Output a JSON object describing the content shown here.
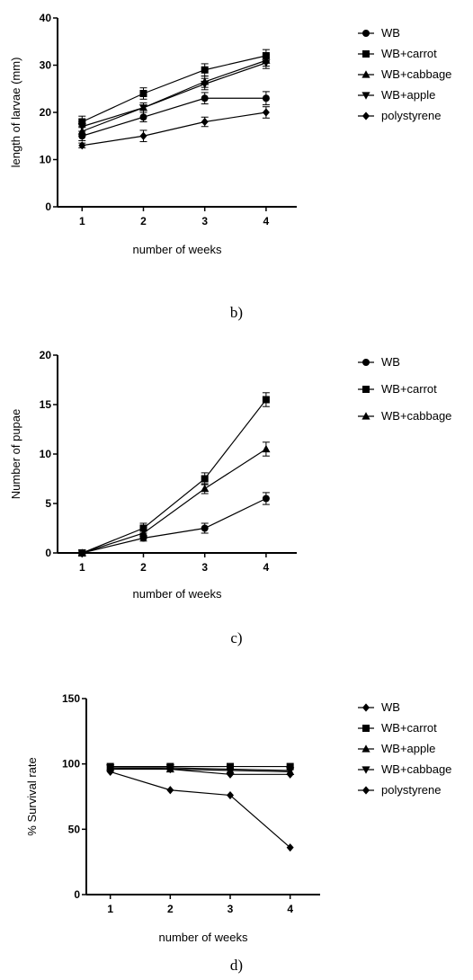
{
  "captions": {
    "b": "b)",
    "c": "c)",
    "d": "d)"
  },
  "chart_data": [
    {
      "type": "line",
      "xlabel": "number of weeks",
      "ylabel": "length of larvae (mm)",
      "x": [
        1,
        2,
        3,
        4
      ],
      "xlim": [
        0.6,
        4.5
      ],
      "ylim": [
        0,
        40
      ],
      "yticks": [
        0,
        10,
        20,
        30,
        40
      ],
      "series": [
        {
          "name": "WB",
          "marker": "circle",
          "values": [
            15,
            19,
            23,
            23
          ],
          "err": [
            1,
            1,
            1.2,
            1.4
          ]
        },
        {
          "name": "WB+carrot",
          "marker": "square",
          "values": [
            18,
            24,
            29,
            32
          ],
          "err": [
            1.2,
            1.2,
            1.3,
            1.3
          ]
        },
        {
          "name": "WB+cabbage",
          "marker": "triangle-up",
          "values": [
            16,
            21,
            26.5,
            31
          ],
          "err": [
            1,
            1,
            1.2,
            1.2
          ]
        },
        {
          "name": "WB+apple",
          "marker": "triangle-down",
          "values": [
            17,
            21,
            26,
            30.5
          ],
          "err": [
            1,
            1,
            1.2,
            1.2
          ]
        },
        {
          "name": "polystyrene",
          "marker": "diamond",
          "values": [
            13,
            15,
            18,
            20
          ],
          "err": [
            0.5,
            1.2,
            1,
            1.2
          ]
        }
      ]
    },
    {
      "type": "line",
      "xlabel": "number of weeks",
      "ylabel": "Number of pupae",
      "x": [
        1,
        2,
        3,
        4
      ],
      "xlim": [
        0.6,
        4.5
      ],
      "ylim": [
        0,
        20
      ],
      "yticks": [
        0,
        5,
        10,
        15,
        20
      ],
      "series": [
        {
          "name": "WB",
          "marker": "circle",
          "values": [
            0,
            1.5,
            2.5,
            5.5
          ],
          "err": [
            0.3,
            0.3,
            0.5,
            0.6
          ]
        },
        {
          "name": "WB+carrot",
          "marker": "square",
          "values": [
            0,
            2.5,
            7.5,
            15.5
          ],
          "err": [
            0.3,
            0.5,
            0.6,
            0.7
          ]
        },
        {
          "name": "WB+cabbage",
          "marker": "triangle-up",
          "values": [
            0,
            2,
            6.5,
            10.5
          ],
          "err": [
            0.3,
            0.4,
            0.5,
            0.7
          ]
        }
      ]
    },
    {
      "type": "line",
      "xlabel": "number of weeks",
      "ylabel": "% Survival rate",
      "x": [
        1,
        2,
        3,
        4
      ],
      "xlim": [
        0.6,
        4.5
      ],
      "ylim": [
        0,
        150
      ],
      "yticks": [
        0,
        50,
        100,
        150
      ],
      "series": [
        {
          "name": "WB",
          "marker": "diamond",
          "values": [
            96,
            96,
            92,
            92
          ],
          "err": [
            0,
            0,
            0,
            0
          ]
        },
        {
          "name": "WB+carrot",
          "marker": "square",
          "values": [
            98,
            98,
            98,
            98
          ],
          "err": [
            0,
            0,
            0,
            0
          ]
        },
        {
          "name": "WB+apple",
          "marker": "triangle-up",
          "values": [
            97,
            96,
            95,
            94
          ],
          "err": [
            0,
            0,
            0,
            0
          ]
        },
        {
          "name": "WB+cabbage",
          "marker": "triangle-down",
          "values": [
            97,
            97,
            96,
            95
          ],
          "err": [
            0,
            0,
            0,
            0
          ]
        },
        {
          "name": "polystyrene",
          "marker": "diamond",
          "values": [
            94,
            80,
            76,
            36
          ],
          "err": [
            0,
            0,
            0,
            0
          ]
        }
      ]
    }
  ]
}
